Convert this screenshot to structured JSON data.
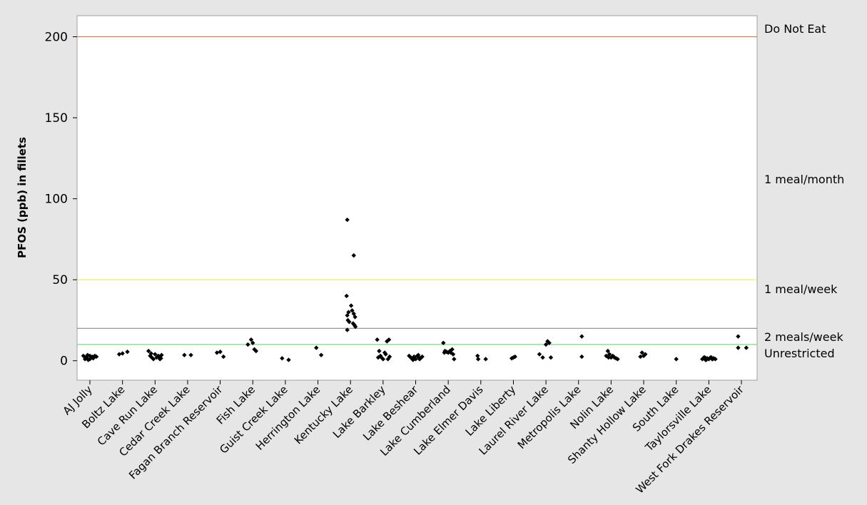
{
  "chart_data": {
    "type": "scatter",
    "title": "",
    "xlabel": "",
    "ylabel": "PFOS (ppb) in fillets",
    "ylim": [
      -12,
      213
    ],
    "yticks": [
      0,
      50,
      100,
      150,
      200
    ],
    "grid": false,
    "legend": "none",
    "marker_color": "#000000",
    "categories": [
      "AJ Jolly",
      "Boltz Lake",
      "Cave Run Lake",
      "Cedar Creek Lake",
      "Fagan Branch Reservoir",
      "Fish Lake",
      "Guist Creek Lake",
      "Herrington Lake",
      "Kentucky Lake",
      "Lake Barkley",
      "Lake Beshear",
      "Lake Cumberland",
      "Lake Elmer Davis",
      "Lake Liberty",
      "Laurel River Lake",
      "Metropolis Lake",
      "Nolin Lake",
      "Shanty Hollow Lake",
      "South Lake",
      "Taylorsville Lake",
      "West Fork Drakes Reservoir"
    ],
    "reference_lines": [
      {
        "label": "Do Not Eat",
        "value": 200,
        "color": "#c8825a"
      },
      {
        "label": "1 meal/month",
        "value": null,
        "color": ""
      },
      {
        "label": "1 meal/week",
        "value": 50,
        "color": "#ecec6a"
      },
      {
        "label": "2 meals/week",
        "value": 20,
        "color": "#888888"
      },
      {
        "label": "Unrestricted",
        "value": 10,
        "color": "#7fd67f"
      }
    ],
    "series": [
      {
        "category": "AJ Jolly",
        "x_offsets": [
          -0.2,
          -0.15,
          -0.1,
          -0.05,
          0,
          0.05,
          0.1,
          0.15,
          0.2,
          -0.12,
          0.0,
          0.12,
          -0.07,
          0.07
        ],
        "y": [
          3,
          1,
          2,
          0.5,
          3,
          2,
          1.5,
          3,
          2.5,
          2,
          1,
          2,
          3.5,
          2.5
        ]
      },
      {
        "category": "Boltz Lake",
        "x_offsets": [
          -0.1,
          0.0,
          0.15
        ],
        "y": [
          4,
          4.5,
          5.5
        ]
      },
      {
        "category": "Cave Run Lake",
        "x_offsets": [
          -0.2,
          -0.15,
          -0.1,
          -0.05,
          0,
          0.05,
          0.1,
          0.15,
          0.2,
          -0.12,
          0.12,
          0.18
        ],
        "y": [
          6,
          3,
          2,
          1,
          4,
          2,
          3,
          1,
          3.5,
          4.5,
          2.5,
          1.5
        ]
      },
      {
        "category": "Cedar Creek Lake",
        "x_offsets": [
          -0.1,
          0.1
        ],
        "y": [
          3.5,
          3.5
        ]
      },
      {
        "category": "Fagan Branch Reservoir",
        "x_offsets": [
          -0.1,
          0.0,
          0.1
        ],
        "y": [
          5,
          5.5,
          2.5
        ]
      },
      {
        "category": "Fish Lake",
        "x_offsets": [
          -0.15,
          -0.05,
          0.0,
          0.05,
          0.1
        ],
        "y": [
          10,
          13,
          11,
          7,
          6
        ]
      },
      {
        "category": "Guist Creek Lake",
        "x_offsets": [
          -0.1,
          0.1
        ],
        "y": [
          1.5,
          0.5
        ]
      },
      {
        "category": "Herrington Lake",
        "x_offsets": [
          -0.05,
          0.1
        ],
        "y": [
          8,
          3.5
        ]
      },
      {
        "category": "Kentucky Lake",
        "x_offsets": [
          -0.1,
          0.1,
          -0.12,
          -0.1,
          -0.06,
          0.02,
          0.05,
          0.1,
          0.14,
          -0.08,
          -0.04,
          0.08,
          0.15,
          -0.1,
          0.12
        ],
        "y": [
          87,
          65,
          40,
          28,
          30,
          34,
          31,
          29,
          27,
          25,
          24,
          23,
          21,
          19,
          22
        ]
      },
      {
        "category": "Lake Barkley",
        "x_offsets": [
          -0.18,
          -0.12,
          -0.08,
          0.0,
          0.05,
          0.12,
          0.18,
          -0.15,
          0.08,
          -0.05,
          0.15,
          0.2
        ],
        "y": [
          13,
          6,
          3,
          1,
          5,
          12,
          13,
          2,
          4,
          2,
          1,
          2.5
        ]
      },
      {
        "category": "Lake Beshear",
        "x_offsets": [
          -0.2,
          -0.15,
          -0.1,
          -0.05,
          0,
          0.05,
          0.1,
          0.15,
          0.2,
          -0.08,
          0.08,
          0.12
        ],
        "y": [
          3,
          2,
          1,
          2.5,
          1,
          3,
          2,
          1.5,
          2.5,
          0.5,
          3.5,
          1
        ]
      },
      {
        "category": "Lake Cumberland",
        "x_offsets": [
          -0.15,
          -0.1,
          -0.05,
          0,
          0.05,
          0.12,
          0.15,
          0.18,
          -0.12,
          0.08
        ],
        "y": [
          11,
          6,
          5.5,
          5,
          6,
          7,
          4,
          1,
          5,
          5
        ]
      },
      {
        "category": "Lake Elmer Davis",
        "x_offsets": [
          -0.1,
          -0.08,
          0.15
        ],
        "y": [
          3,
          1,
          1
        ]
      },
      {
        "category": "Lake Liberty",
        "x_offsets": [
          -0.05,
          0.0,
          0.05
        ],
        "y": [
          1.5,
          2,
          2.5
        ]
      },
      {
        "category": "Laurel River Lake",
        "x_offsets": [
          -0.2,
          -0.1,
          0.0,
          0.05,
          0.1,
          0.15
        ],
        "y": [
          4,
          2,
          10,
          12,
          11,
          2
        ]
      },
      {
        "category": "Metropolis Lake",
        "x_offsets": [
          0.1,
          0.1
        ],
        "y": [
          15,
          2.5
        ]
      },
      {
        "category": "Nolin Lake",
        "x_offsets": [
          -0.15,
          -0.1,
          -0.05,
          0,
          0.05,
          0.1,
          0.15,
          0.2,
          -0.08,
          0.08
        ],
        "y": [
          3,
          6,
          4,
          2,
          3,
          2,
          1.5,
          1,
          2,
          2.5
        ]
      },
      {
        "category": "Shanty Hollow Lake",
        "x_offsets": [
          -0.1,
          -0.05,
          0.0,
          0.05
        ],
        "y": [
          2.5,
          5,
          3,
          4
        ]
      },
      {
        "category": "South Lake",
        "x_offsets": [
          0.0
        ],
        "y": [
          1
        ]
      },
      {
        "category": "Taylorsville Lake",
        "x_offsets": [
          -0.2,
          -0.15,
          -0.1,
          -0.05,
          0,
          0.05,
          0.1,
          0.15,
          0.2,
          -0.12,
          0.12,
          -0.08,
          0.08
        ],
        "y": [
          1,
          2,
          0.5,
          1.5,
          1,
          2,
          1,
          1.5,
          1,
          2,
          1,
          0.5,
          2
        ]
      },
      {
        "category": "West Fork Drakes Reservoir",
        "x_offsets": [
          -0.1,
          -0.1,
          0.15
        ],
        "y": [
          15,
          8,
          8
        ]
      }
    ]
  }
}
